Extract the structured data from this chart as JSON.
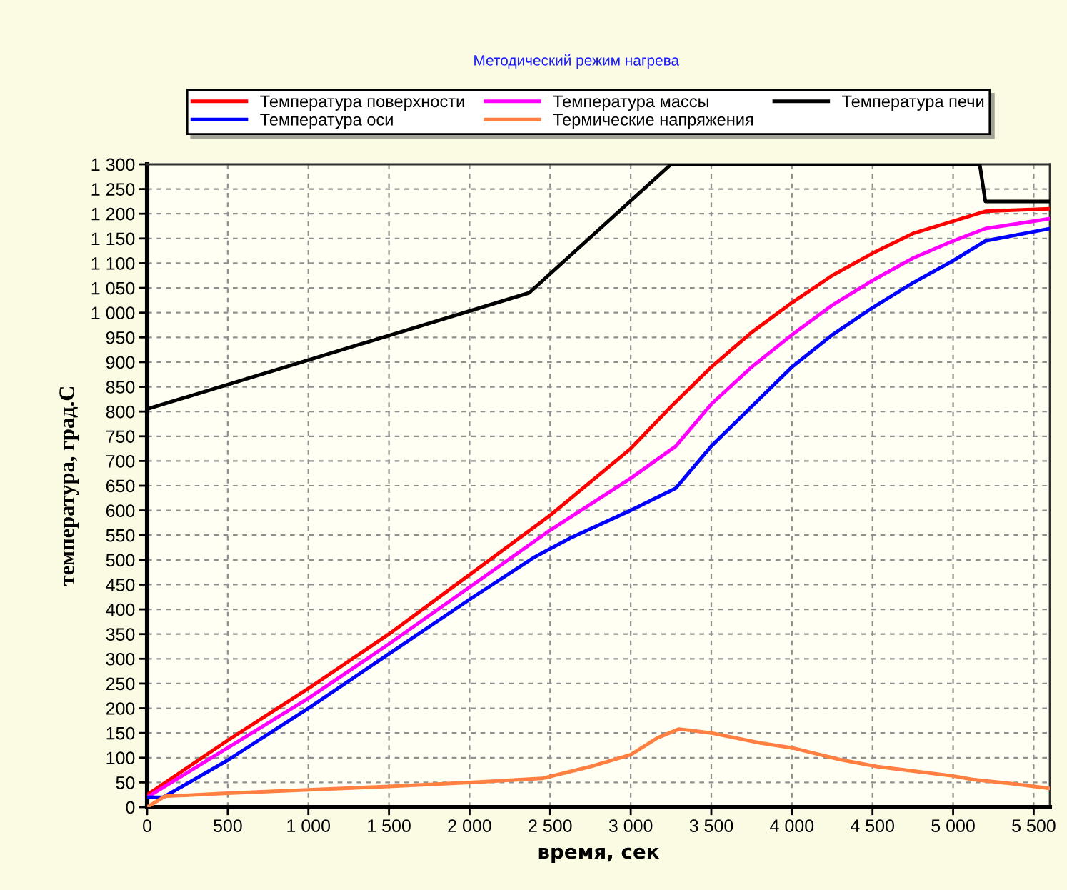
{
  "chart_data": {
    "type": "line",
    "title": "Методический режим нагрева",
    "xlabel": "время, сек",
    "ylabel": "температура, град.С",
    "xlim": [
      0,
      5600
    ],
    "xticks": [
      0,
      500,
      {
        "value": 1000,
        "label": "1 000"
      },
      {
        "value": 1500,
        "label": "1 500"
      },
      {
        "value": 2000,
        "label": "2 000"
      },
      {
        "value": 2500,
        "label": "2 500"
      },
      {
        "value": 3000,
        "label": "3 000"
      },
      {
        "value": 3500,
        "label": "3 500"
      },
      {
        "value": 4000,
        "label": "4 000"
      },
      {
        "value": 4500,
        "label": "4 500"
      },
      {
        "value": 5000,
        "label": "5 000"
      },
      {
        "value": 5500,
        "label": "5 500"
      }
    ],
    "ylim": [
      0,
      1300
    ],
    "yticks": [
      0,
      50,
      100,
      150,
      200,
      250,
      300,
      350,
      400,
      450,
      500,
      550,
      600,
      650,
      700,
      750,
      800,
      850,
      900,
      950,
      {
        "value": 1000,
        "label": "1 000"
      },
      {
        "value": 1050,
        "label": "1 050"
      },
      {
        "value": 1100,
        "label": "1 100"
      },
      {
        "value": 1150,
        "label": "1 150"
      },
      {
        "value": 1200,
        "label": "1 200"
      },
      {
        "value": 1250,
        "label": "1 250"
      },
      {
        "value": 1300,
        "label": "1 300"
      }
    ],
    "grid": true,
    "legend": "top",
    "marker": "none",
    "line_style": "solid",
    "series": [
      {
        "name": "Температура поверхности",
        "color": "#ff0000",
        "x": [
          0,
          500,
          1000,
          1500,
          2000,
          2500,
          3000,
          3250,
          3500,
          3750,
          4000,
          4250,
          4500,
          4750,
          5000,
          5200,
          5600
        ],
        "values": [
          25,
          135,
          240,
          350,
          470,
          590,
          725,
          810,
          890,
          960,
          1020,
          1075,
          1120,
          1160,
          1185,
          1205,
          1210
        ]
      },
      {
        "name": "Температура массы",
        "color": "#ff00ff",
        "x": [
          0,
          500,
          1000,
          1500,
          2000,
          2500,
          3000,
          3280,
          3500,
          3750,
          4000,
          4250,
          4500,
          4750,
          5000,
          5200,
          5600
        ],
        "values": [
          20,
          120,
          220,
          330,
          445,
          560,
          665,
          730,
          815,
          890,
          955,
          1015,
          1065,
          1110,
          1145,
          1170,
          1190
        ]
      },
      {
        "name": "Температура печи",
        "color": "#000000",
        "x": [
          0,
          2370,
          3250,
          5165,
          5200,
          5600
        ],
        "values": [
          805,
          1040,
          1300,
          1300,
          1225,
          1225
        ]
      },
      {
        "name": "Температура оси",
        "color": "#0000ff",
        "x": [
          0,
          100,
          500,
          1000,
          1500,
          2000,
          2400,
          2630,
          3000,
          3280,
          3500,
          3750,
          4000,
          4250,
          4500,
          4750,
          5000,
          5200,
          5600
        ],
        "values": [
          20,
          20,
          95,
          200,
          310,
          420,
          505,
          545,
          600,
          645,
          730,
          810,
          890,
          955,
          1010,
          1060,
          1105,
          1145,
          1170
        ]
      },
      {
        "name": "Термические напряжения",
        "color": "#ff8040",
        "x": [
          0,
          110,
          500,
          1000,
          1500,
          2000,
          2450,
          2750,
          3000,
          3165,
          3300,
          3500,
          3800,
          4000,
          4300,
          4530,
          5000,
          5120,
          5350,
          5600
        ],
        "values": [
          0,
          22,
          28,
          35,
          42,
          50,
          58,
          82,
          106,
          140,
          158,
          150,
          130,
          120,
          96,
          82,
          63,
          56,
          48,
          38
        ]
      }
    ]
  }
}
